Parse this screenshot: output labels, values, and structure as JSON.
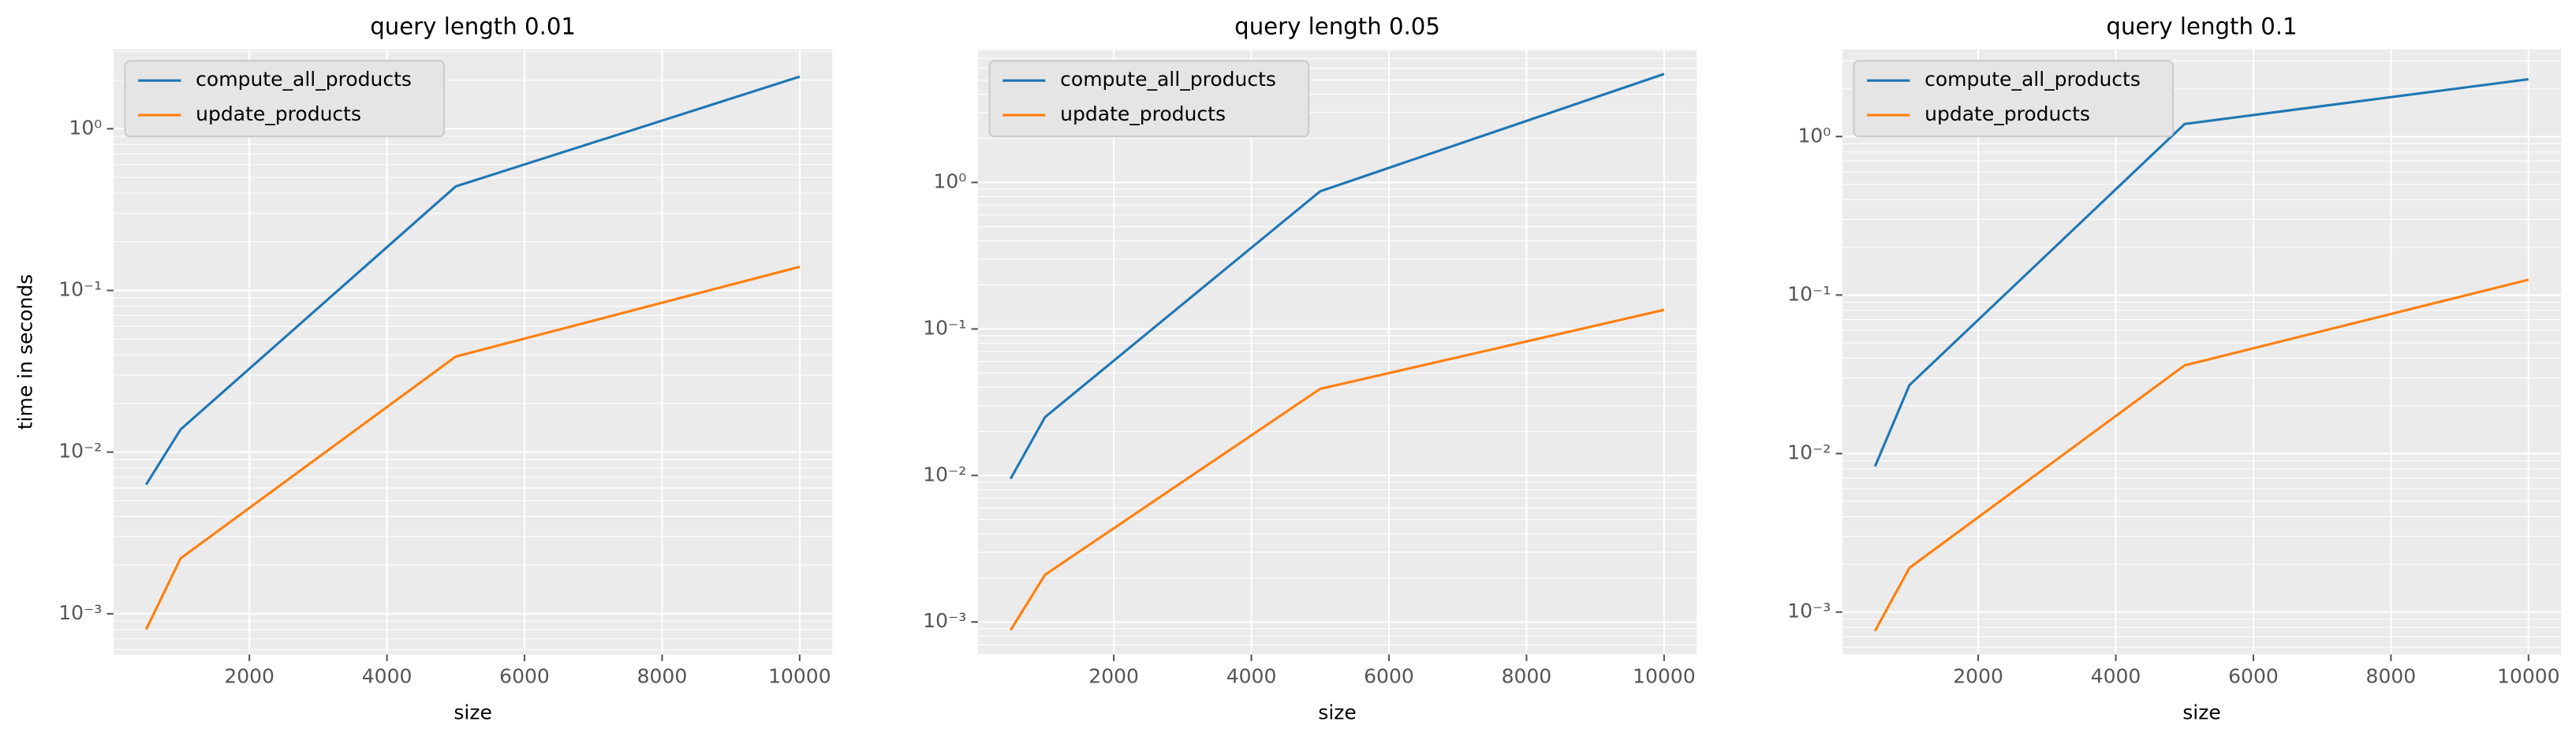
{
  "chart_data": [
    {
      "type": "line",
      "title": "query length 0.01",
      "x_label": "size",
      "y_label": "time in seconds",
      "x": [
        500,
        1000,
        5000,
        10000
      ],
      "series": [
        {
          "name": "compute_all_products",
          "color": "#1f77b4",
          "values": [
            0.0063,
            0.0138,
            0.44,
            2.1
          ]
        },
        {
          "name": "update_products",
          "color": "#ff7f0e",
          "values": [
            0.0008,
            0.0022,
            0.039,
            0.14
          ]
        }
      ],
      "xlim": [
        25,
        10475
      ],
      "ylim": [
        0.00056,
        3.1
      ],
      "xticks": [
        2000,
        4000,
        6000,
        8000,
        10000
      ],
      "yticks": [
        {
          "value": 0.001,
          "label": "10⁻³"
        },
        {
          "value": 0.01,
          "label": "10⁻²"
        },
        {
          "value": 0.1,
          "label": "10⁻¹"
        },
        {
          "value": 1,
          "label": "10⁰"
        }
      ],
      "log_y": true,
      "grid": true,
      "legend": "upper left"
    },
    {
      "type": "line",
      "title": "query length 0.05",
      "x_label": "size",
      "x": [
        500,
        1000,
        5000,
        10000
      ],
      "series": [
        {
          "name": "compute_all_products",
          "color": "#1f77b4",
          "values": [
            0.0095,
            0.025,
            0.87,
            5.5
          ]
        },
        {
          "name": "update_products",
          "color": "#ff7f0e",
          "values": [
            0.00088,
            0.0021,
            0.039,
            0.135
          ]
        }
      ],
      "xlim": [
        25,
        10475
      ],
      "ylim": [
        0.0006,
        8.1
      ],
      "xticks": [
        2000,
        4000,
        6000,
        8000,
        10000
      ],
      "yticks": [
        {
          "value": 0.001,
          "label": "10⁻³"
        },
        {
          "value": 0.01,
          "label": "10⁻²"
        },
        {
          "value": 0.1,
          "label": "10⁻¹"
        },
        {
          "value": 1,
          "label": "10⁰"
        }
      ],
      "log_y": true,
      "grid": true,
      "legend": "upper left"
    },
    {
      "type": "line",
      "title": "query length 0.1",
      "x_label": "size",
      "x": [
        500,
        1000,
        5000,
        10000
      ],
      "series": [
        {
          "name": "compute_all_products",
          "color": "#1f77b4",
          "values": [
            0.0083,
            0.027,
            1.2,
            2.3
          ]
        },
        {
          "name": "update_products",
          "color": "#ff7f0e",
          "values": [
            0.00076,
            0.0019,
            0.036,
            0.125
          ]
        }
      ],
      "xlim": [
        25,
        10475
      ],
      "ylim": [
        0.00054,
        3.55
      ],
      "xticks": [
        2000,
        4000,
        6000,
        8000,
        10000
      ],
      "yticks": [
        {
          "value": 0.001,
          "label": "10⁻³"
        },
        {
          "value": 0.01,
          "label": "10⁻²"
        },
        {
          "value": 0.1,
          "label": "10⁻¹"
        },
        {
          "value": 1,
          "label": "10⁰"
        }
      ],
      "log_y": true,
      "grid": true,
      "legend": "upper left"
    }
  ]
}
